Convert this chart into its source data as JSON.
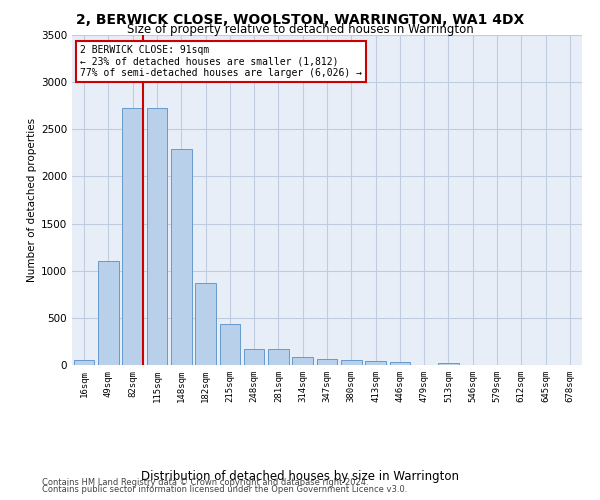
{
  "title": "2, BERWICK CLOSE, WOOLSTON, WARRINGTON, WA1 4DX",
  "subtitle": "Size of property relative to detached houses in Warrington",
  "xlabel": "Distribution of detached houses by size in Warrington",
  "ylabel": "Number of detached properties",
  "footnote1": "Contains HM Land Registry data © Crown copyright and database right 2024.",
  "footnote2": "Contains public sector information licensed under the Open Government Licence v3.0.",
  "categories": [
    "16sqm",
    "49sqm",
    "82sqm",
    "115sqm",
    "148sqm",
    "182sqm",
    "215sqm",
    "248sqm",
    "281sqm",
    "314sqm",
    "347sqm",
    "380sqm",
    "413sqm",
    "446sqm",
    "479sqm",
    "513sqm",
    "546sqm",
    "579sqm",
    "612sqm",
    "645sqm",
    "678sqm"
  ],
  "values": [
    50,
    1100,
    2730,
    2730,
    2290,
    870,
    430,
    170,
    165,
    90,
    60,
    50,
    45,
    30,
    5,
    25,
    0,
    0,
    0,
    0,
    0
  ],
  "bar_color": "#b8d0ea",
  "bar_edge_color": "#6699cc",
  "plot_bg_color": "#e8eef8",
  "fig_bg_color": "#ffffff",
  "grid_color": "#c0cce0",
  "vline_index": 2,
  "vline_color": "#cc0000",
  "annotation_title": "2 BERWICK CLOSE: 91sqm",
  "annotation_line1": "← 23% of detached houses are smaller (1,812)",
  "annotation_line2": "77% of semi-detached houses are larger (6,026) →",
  "annotation_box_facecolor": "#ffffff",
  "annotation_border_color": "#cc0000",
  "ylim": [
    0,
    3500
  ],
  "yticks": [
    0,
    500,
    1000,
    1500,
    2000,
    2500,
    3000,
    3500
  ]
}
